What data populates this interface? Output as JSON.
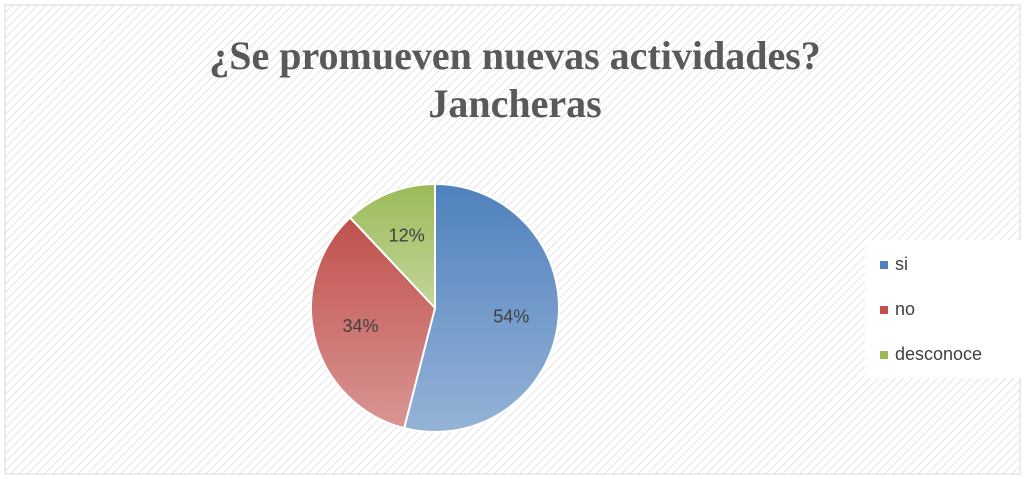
{
  "chart_data": {
    "type": "pie",
    "title": [
      "¿Se promueven nuevas actividades?",
      "Jancheras"
    ],
    "categories": [
      "si",
      "no",
      "desconoce"
    ],
    "values": [
      54,
      34,
      12
    ],
    "value_labels": [
      "54%",
      "34%",
      "12%"
    ],
    "colors": [
      "#4f81bd",
      "#c0504d",
      "#9bbb59"
    ],
    "legend": "right"
  }
}
